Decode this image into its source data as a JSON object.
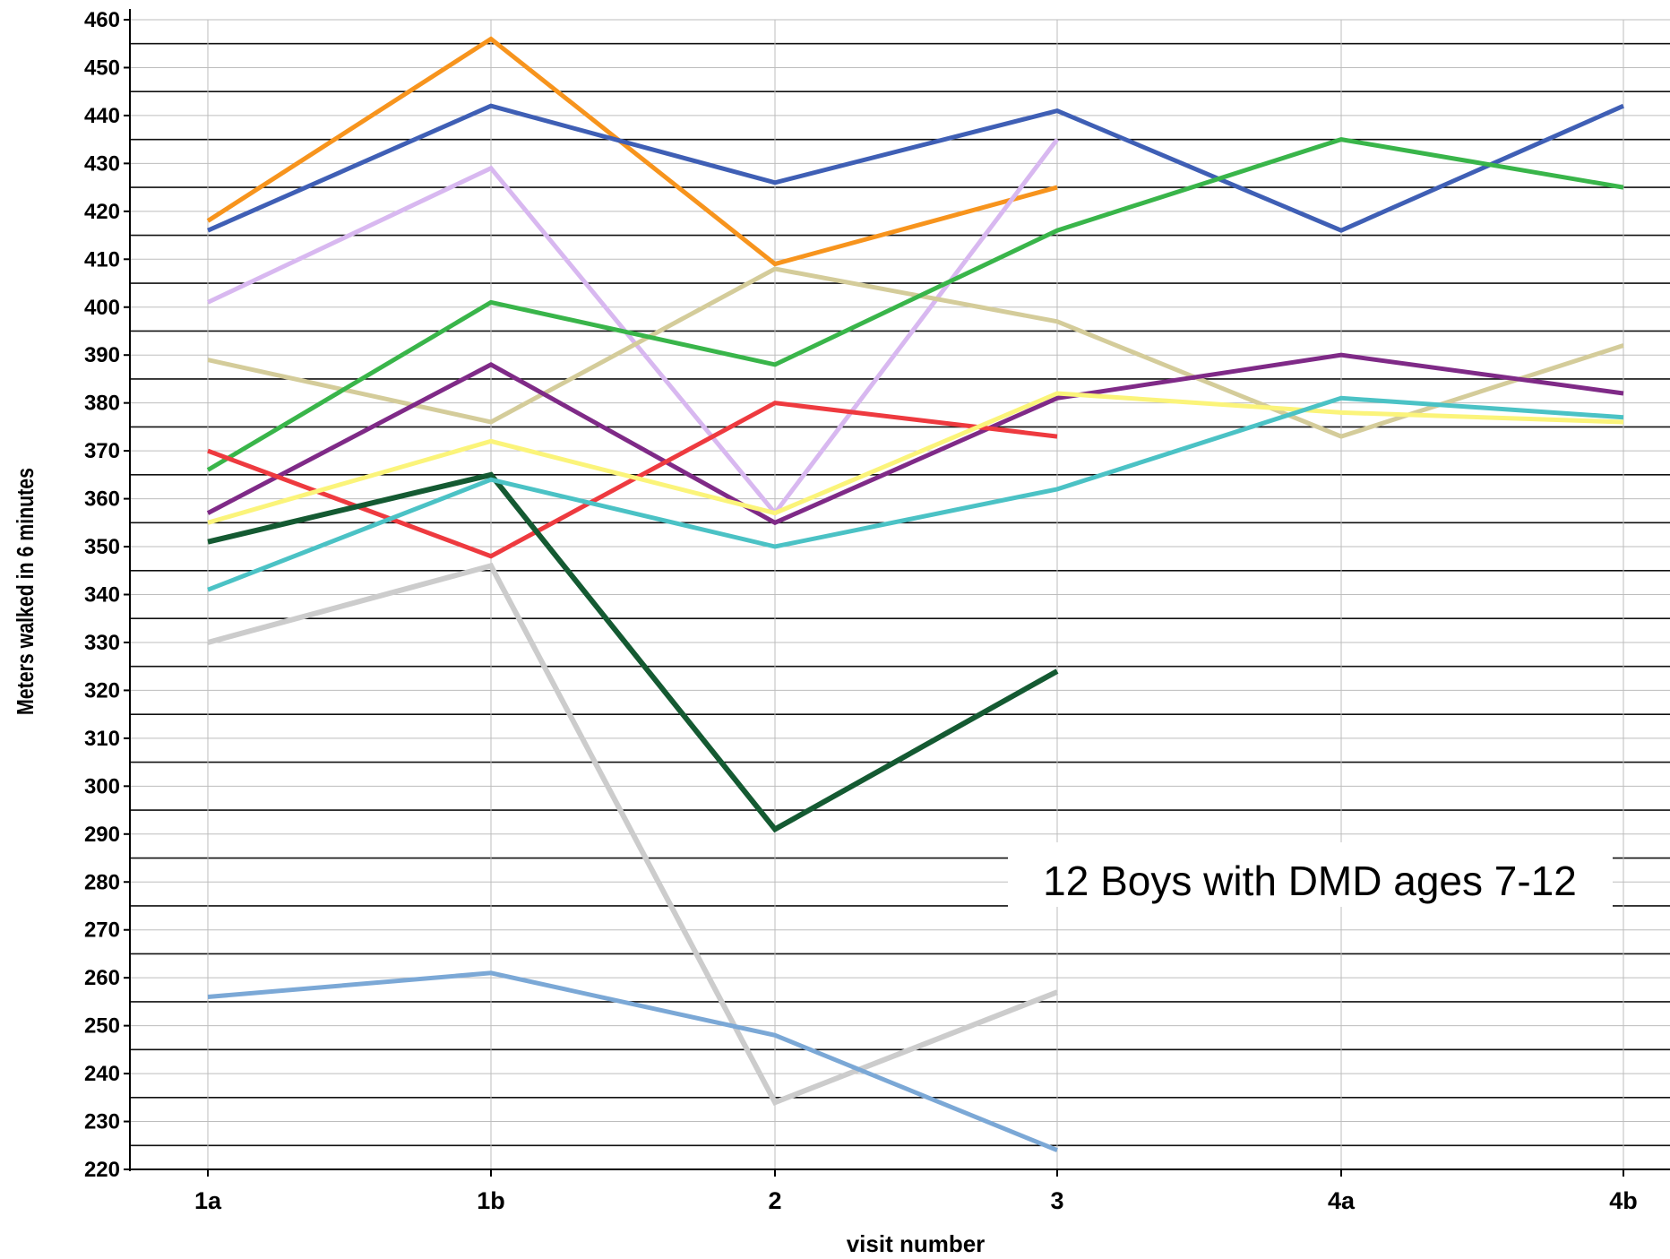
{
  "chart_data": {
    "type": "line",
    "title": "",
    "xlabel": "visit number",
    "ylabel": "Meters walked in 6 minutes",
    "categories": [
      "1a",
      "1b",
      "2",
      "3",
      "4a",
      "4b"
    ],
    "ylim": [
      220,
      460
    ],
    "yticks": [
      220,
      230,
      240,
      250,
      260,
      270,
      280,
      290,
      300,
      310,
      320,
      330,
      340,
      350,
      360,
      370,
      380,
      390,
      400,
      410,
      420,
      430,
      440,
      450,
      460
    ],
    "grid": true,
    "annotation": "12 Boys with DMD ages 7-12",
    "series": [
      {
        "color": "#f7941d",
        "values": [
          418,
          456,
          409,
          425,
          null,
          null
        ]
      },
      {
        "color": "#3f5fb5",
        "values": [
          416,
          442,
          426,
          441,
          416,
          442
        ]
      },
      {
        "color": "#d8b8f0",
        "values": [
          401,
          429,
          357,
          435,
          null,
          null
        ]
      },
      {
        "color": "#d4cc9a",
        "values": [
          389,
          376,
          408,
          397,
          373,
          392
        ]
      },
      {
        "color": "#39b54a",
        "values": [
          366,
          401,
          388,
          416,
          435,
          425
        ]
      },
      {
        "color": "#7f2a87",
        "values": [
          357,
          388,
          355,
          381,
          390,
          382
        ]
      },
      {
        "color": "#ee3a3f",
        "values": [
          370,
          348,
          380,
          373,
          null,
          null
        ]
      },
      {
        "color": "#fbf47a",
        "values": [
          355,
          372,
          357,
          382,
          378,
          376
        ]
      },
      {
        "color": "#145a32",
        "values": [
          351,
          365,
          291,
          324,
          null,
          null
        ]
      },
      {
        "color": "#4bc2c5",
        "values": [
          341,
          364,
          350,
          362,
          381,
          377
        ]
      },
      {
        "color": "#cccccc",
        "values": [
          330,
          346,
          234,
          257,
          null,
          null
        ]
      },
      {
        "color": "#7ba8d6",
        "values": [
          256,
          261,
          248,
          224,
          null,
          null
        ]
      }
    ]
  }
}
